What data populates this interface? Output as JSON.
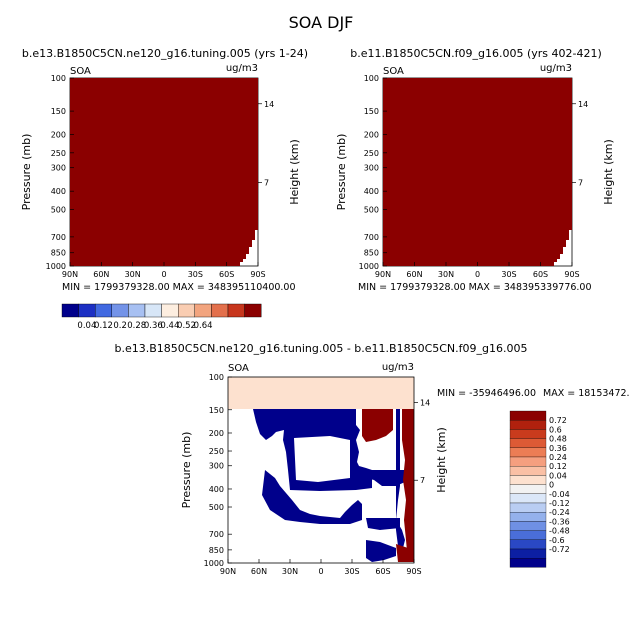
{
  "chart_data": {
    "title": "SOA DJF",
    "panels": [
      {
        "type": "heatmap",
        "title": "b.e13.B1850C5CN.ne120_g16.tuning.005 (yrs 1-24)",
        "left_label": "SOA",
        "right_label": "ug/m3",
        "ylabel": "Pressure (mb)",
        "ylabel_right": "Height (km)",
        "x_ticks": [
          "90N",
          "60N",
          "30N",
          "0",
          "30S",
          "60S",
          "90S"
        ],
        "y_ticks": [
          "100",
          "150",
          "200",
          "250",
          "300",
          "400",
          "500",
          "700",
          "850",
          "1000"
        ],
        "height_ticks": [
          "14",
          "7"
        ],
        "min_max_text": "MIN = 1799379328.00   MAX = 348395110400.00",
        "fill_value": "above 0.64"
      },
      {
        "type": "heatmap",
        "title": "b.e11.B1850C5CN.f09_g16.005 (yrs 402-421)",
        "left_label": "SOA",
        "right_label": "ug/m3",
        "ylabel": "Pressure (mb)",
        "ylabel_right": "Height (km)",
        "x_ticks": [
          "90N",
          "60N",
          "30N",
          "0",
          "30S",
          "60S",
          "90S"
        ],
        "y_ticks": [
          "100",
          "150",
          "200",
          "250",
          "300",
          "400",
          "500",
          "700",
          "850",
          "1000"
        ],
        "height_ticks": [
          "14",
          "7"
        ],
        "min_max_text": "MIN = 1799379328.00   MAX = 348395339776.00",
        "fill_value": "above 0.64"
      },
      {
        "type": "heatmap",
        "title": "b.e13.B1850C5CN.ne120_g16.tuning.005 - b.e11.B1850C5CN.f09_g16.005",
        "left_label": "SOA",
        "right_label": "ug/m3",
        "ylabel": "Pressure (mb)",
        "ylabel_right": "Height (km)",
        "x_ticks": [
          "90N",
          "60N",
          "30N",
          "0",
          "30S",
          "60S",
          "90S"
        ],
        "y_ticks": [
          "100",
          "150",
          "200",
          "250",
          "300",
          "400",
          "500",
          "700",
          "850",
          "1000"
        ],
        "height_ticks": [
          "14",
          "7"
        ],
        "min_text": "MIN = -35946496.00",
        "max_text": "MAX = 18153472."
      }
    ],
    "colorbar_top": {
      "levels": [
        "0.04",
        "0.12",
        "0.2",
        "0.28",
        "0.36",
        "0.44",
        "0.52",
        "0.64"
      ],
      "colors": [
        "#00008b",
        "#1c2fc3",
        "#4169e1",
        "#7393e8",
        "#a7c0f2",
        "#d7e6f7",
        "#fdeee0",
        "#f9cdb2",
        "#f2a47e",
        "#e3704c",
        "#c7361d",
        "#8b0000"
      ]
    },
    "colorbar_diff": {
      "levels": [
        "0.72",
        "0.6",
        "0.48",
        "0.36",
        "0.24",
        "0.12",
        "0.04",
        "0",
        "-0.04",
        "-0.12",
        "-0.24",
        "-0.36",
        "-0.48",
        "-0.6",
        "-0.72"
      ],
      "colors": [
        "#8b0000",
        "#b0210e",
        "#c93b1d",
        "#dd5a35",
        "#ec7d55",
        "#f59f7f",
        "#fac0a5",
        "#fde1cf",
        "#f2f2f2",
        "#dbe7f8",
        "#b9cdf2",
        "#94b1ec",
        "#6f90e4",
        "#4a6ed9",
        "#2a48c4",
        "#0c1fa3",
        "#00008b"
      ]
    }
  }
}
